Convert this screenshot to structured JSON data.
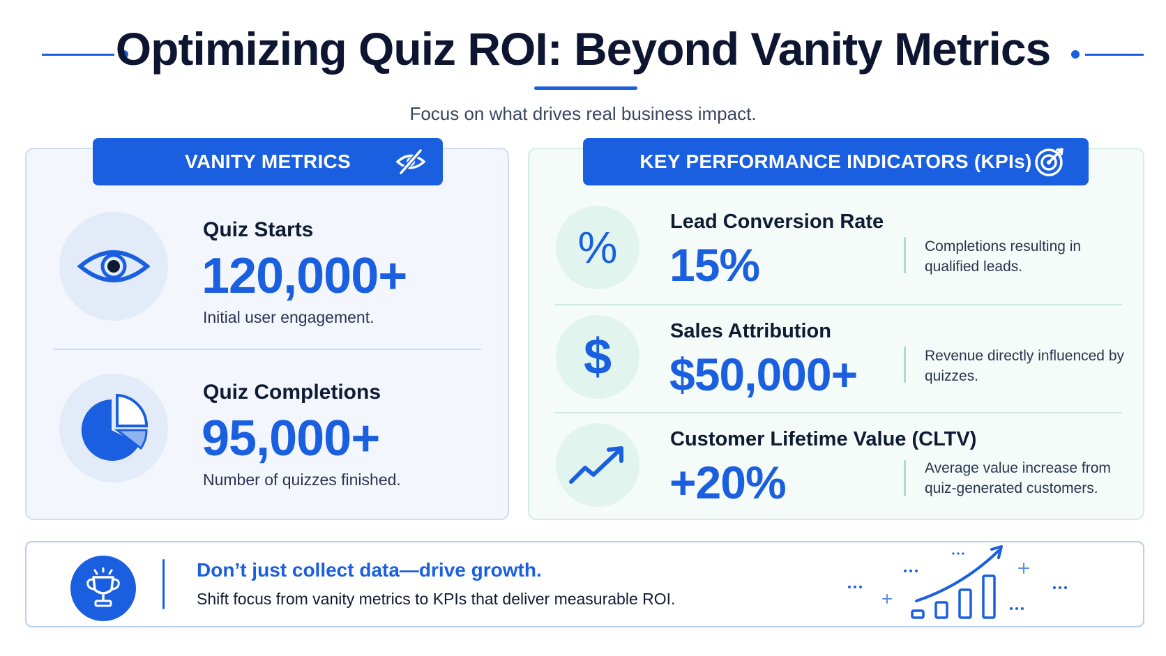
{
  "header": {
    "title": "Optimizing Quiz ROI: Beyond Vanity Metrics",
    "subtitle": "Focus on what drives real business impact."
  },
  "vanity": {
    "heading": "VANITY METRICS",
    "heading_icon": "eye-slash-icon",
    "items": [
      {
        "icon": "eye-icon",
        "label": "Quiz Starts",
        "value": "120,000+",
        "description": "Initial user engagement."
      },
      {
        "icon": "pie-chart-icon",
        "label": "Quiz Completions",
        "value": "95,000+",
        "description": "Number of quizzes finished."
      }
    ]
  },
  "kpis": {
    "heading": "KEY PERFORMANCE INDICATORS (KPIs)",
    "heading_icon": "target-icon",
    "items": [
      {
        "icon": "percent-icon",
        "icon_glyph": "%",
        "label": "Lead Conversion Rate",
        "value": "15%",
        "description": "Completions resulting in qualified leads."
      },
      {
        "icon": "dollar-icon",
        "icon_glyph": "$",
        "label": "Sales Attribution",
        "value": "$50,000+",
        "description": "Revenue directly influenced by quizzes."
      },
      {
        "icon": "trend-up-icon",
        "label": "Customer Lifetime Value (CLTV)",
        "value": "+20%",
        "description": "Average value increase from quiz-generated customers."
      }
    ]
  },
  "footer": {
    "icon": "trophy-icon",
    "headline": "Don’t just collect data—drive growth.",
    "text": "Shift focus from vanity metrics to KPIs that deliver measurable ROI.",
    "graphic_icon": "growth-bars-icon"
  },
  "colors": {
    "accent": "#1a5fe0",
    "vanity_bg": "#f3f6fc",
    "kpi_bg": "#f4fbf8"
  }
}
